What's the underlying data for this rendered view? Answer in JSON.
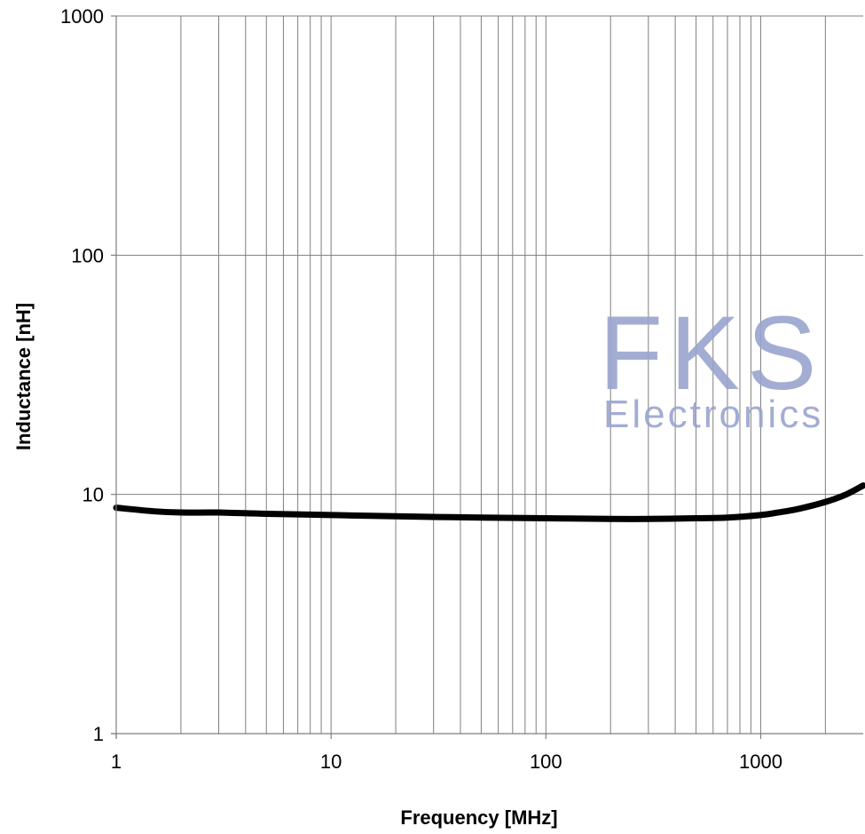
{
  "chart_data": {
    "type": "line",
    "xlabel": "Frequency [MHz]",
    "ylabel": "Inductance [nH]",
    "xscale": "log",
    "yscale": "log",
    "xlim": [
      1,
      3000
    ],
    "ylim": [
      1,
      1000
    ],
    "xticks": [
      1,
      10,
      100,
      1000
    ],
    "xtick_labels": [
      "1",
      "10",
      "100",
      "1000"
    ],
    "yticks": [
      1,
      10,
      100,
      1000
    ],
    "ytick_labels": [
      "1",
      "10",
      "100",
      "1000"
    ],
    "grid": true,
    "series": [
      {
        "x": [
          1,
          1.5,
          2,
          3,
          5,
          10,
          20,
          50,
          100,
          200,
          300,
          500,
          700,
          1000,
          1200,
          1500,
          2000,
          2500,
          3000
        ],
        "y": [
          8.8,
          8.5,
          8.4,
          8.4,
          8.3,
          8.2,
          8.1,
          8.0,
          7.95,
          7.9,
          7.9,
          7.95,
          8.0,
          8.2,
          8.4,
          8.7,
          9.3,
          10.0,
          10.9
        ],
        "color": "#000000"
      }
    ],
    "watermark": {
      "brand": "FKS",
      "subtitle": "Electronics",
      "color": "#9aa5cf"
    }
  }
}
